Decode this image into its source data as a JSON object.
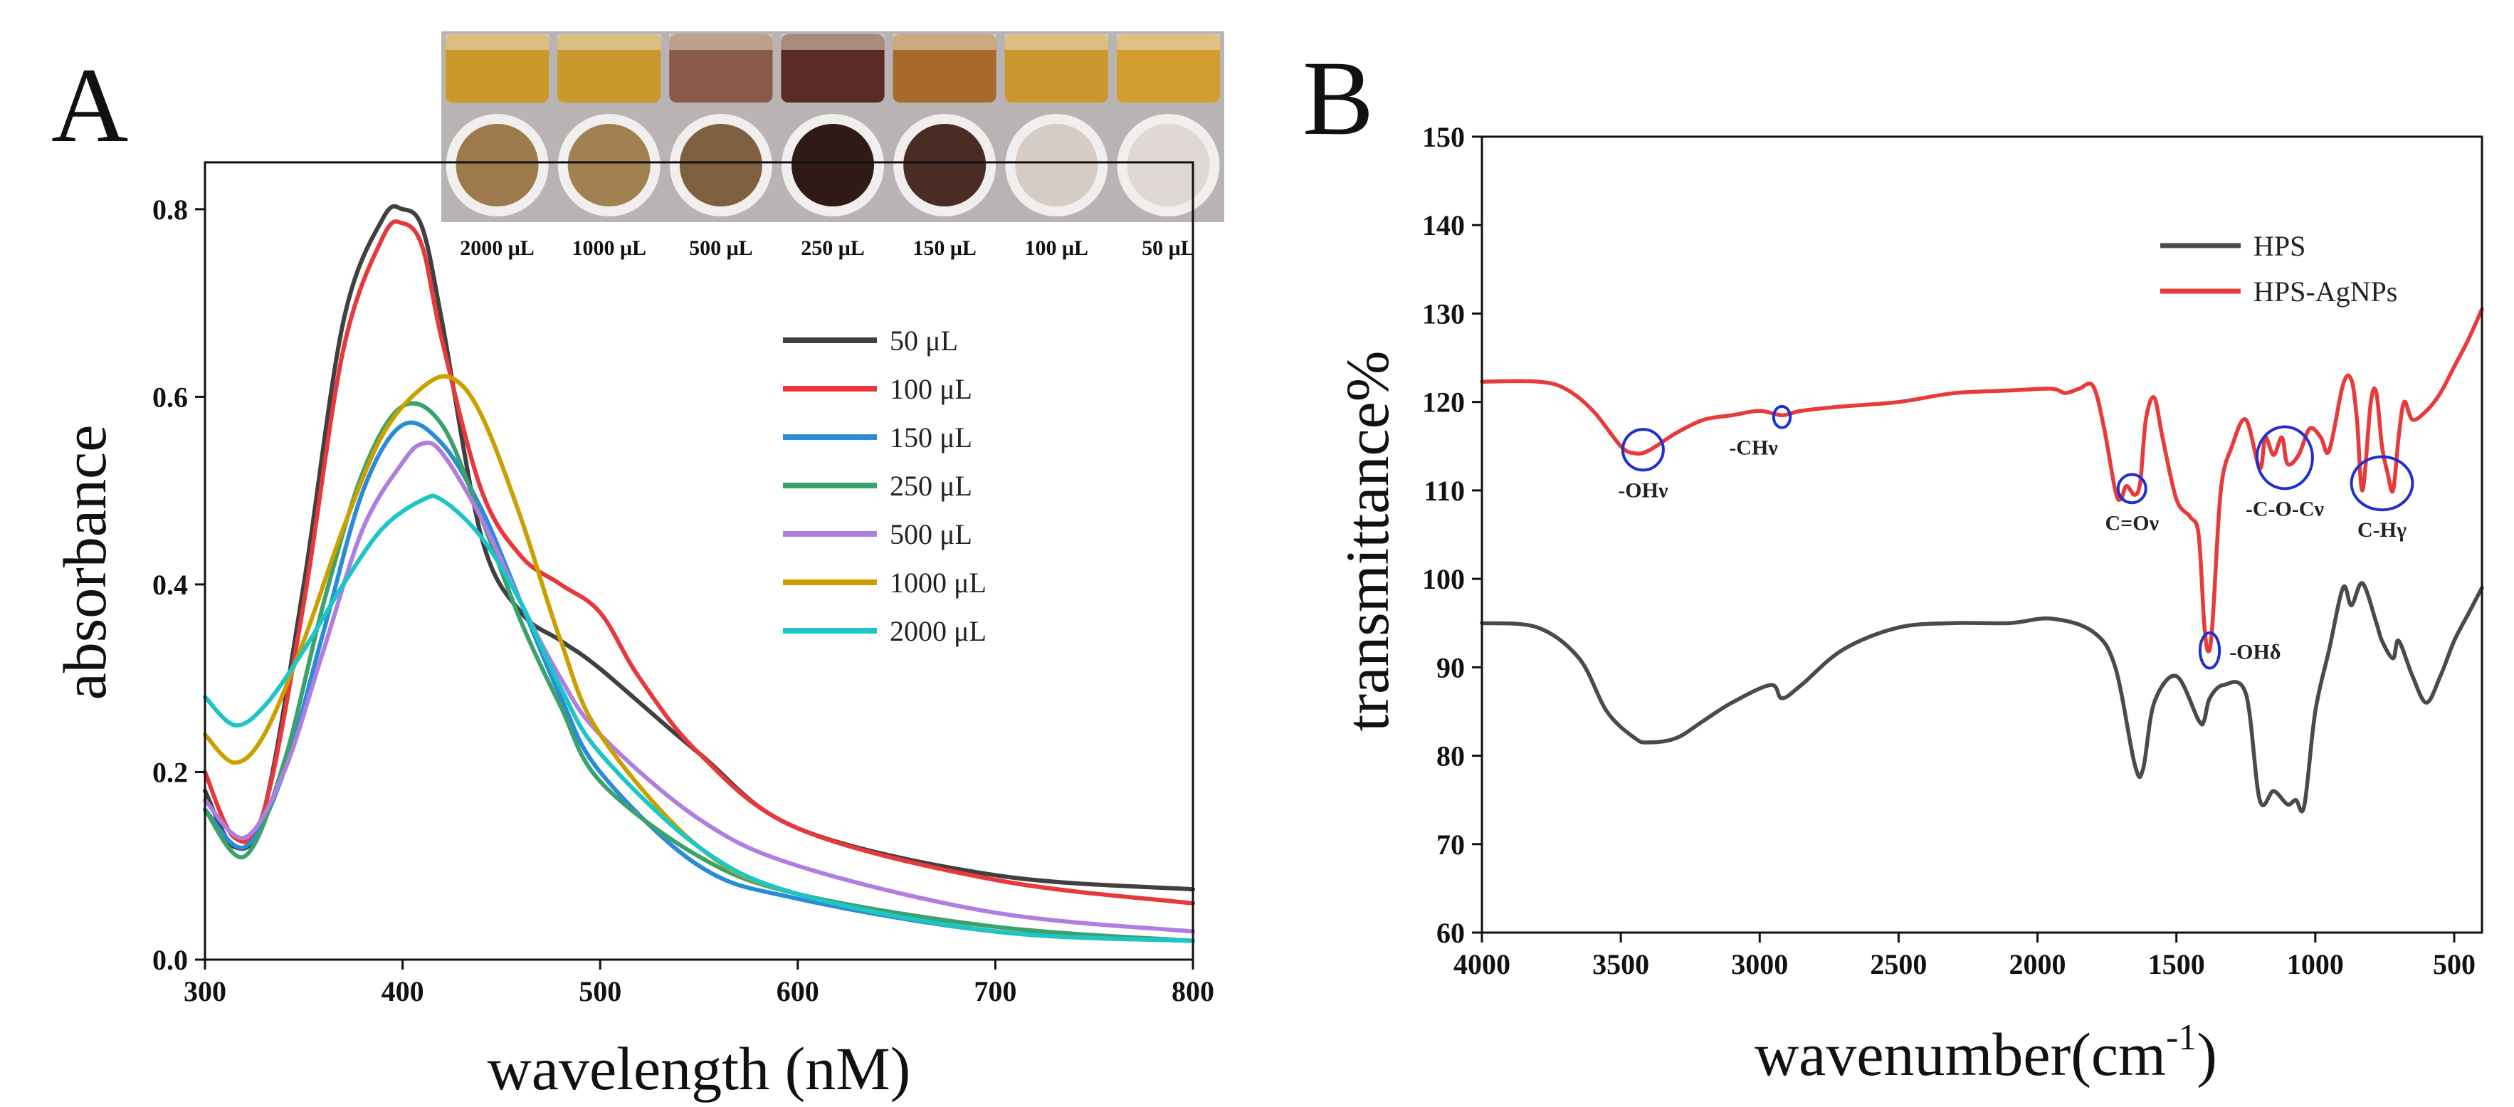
{
  "panels": {
    "a": {
      "letter": "A"
    },
    "b": {
      "letter": "B"
    }
  },
  "vial_photo": {
    "labels": [
      "2000 μL",
      "1000 μL",
      "500 μL",
      "250 μL",
      "150 μL",
      "100 μL",
      "50 μL"
    ],
    "liquid_colors": [
      "#c99a2a",
      "#c8992c",
      "#8a5a48",
      "#5a2a24",
      "#a86a2a",
      "#c9972e",
      "#d39e30"
    ],
    "dot_colors": [
      "#9c7a4c",
      "#a0814f",
      "#7e6040",
      "#2f1a16",
      "#4a2c24",
      "#d6ccc6",
      "#e0d8d4"
    ]
  },
  "colors": {
    "uv_50": "#404040",
    "uv_100": "#e8383b",
    "uv_150": "#2a8cd8",
    "uv_250": "#3aa26c",
    "uv_500": "#b07ee0",
    "uv_1000": "#c9a000",
    "uv_2000": "#1cc6c6",
    "ir_hps": "#4a4a4a",
    "ir_agnps": "#e83a3a",
    "circle": "#1f2fd0"
  },
  "chart_data": [
    {
      "type": "line",
      "title": "",
      "xlabel": "wavelength (nM)",
      "ylabel": "absorbance",
      "xlim": [
        300,
        800
      ],
      "ylim": [
        0,
        0.85
      ],
      "xticks": [
        300,
        400,
        500,
        600,
        700,
        800
      ],
      "yticks": [
        0.0,
        0.2,
        0.4,
        0.6,
        0.8
      ],
      "xtick_labels": [
        "300",
        "400",
        "500",
        "600",
        "700",
        "800"
      ],
      "ytick_labels": [
        "0.0",
        "0.2",
        "0.4",
        "0.6",
        "0.8"
      ],
      "legend_position": "right",
      "series": [
        {
          "name": "50 μL",
          "color_key": "uv_50",
          "x": [
            300,
            315,
            330,
            350,
            370,
            390,
            400,
            410,
            420,
            440,
            460,
            480,
            500,
            550,
            600,
            700,
            800
          ],
          "y": [
            0.18,
            0.12,
            0.16,
            0.4,
            0.68,
            0.79,
            0.8,
            0.78,
            0.68,
            0.45,
            0.37,
            0.34,
            0.31,
            0.22,
            0.14,
            0.09,
            0.075
          ]
        },
        {
          "name": "100 μL",
          "color_key": "uv_100",
          "x": [
            300,
            315,
            330,
            350,
            370,
            390,
            400,
            410,
            420,
            440,
            460,
            480,
            500,
            520,
            550,
            600,
            700,
            800
          ],
          "y": [
            0.2,
            0.13,
            0.16,
            0.38,
            0.65,
            0.77,
            0.785,
            0.76,
            0.66,
            0.5,
            0.43,
            0.4,
            0.37,
            0.3,
            0.22,
            0.14,
            0.085,
            0.06
          ]
        },
        {
          "name": "150 μL",
          "color_key": "uv_150",
          "x": [
            300,
            320,
            340,
            360,
            380,
            400,
            420,
            440,
            460,
            480,
            500,
            550,
            600,
            700,
            800
          ],
          "y": [
            0.16,
            0.12,
            0.2,
            0.35,
            0.5,
            0.57,
            0.55,
            0.48,
            0.38,
            0.28,
            0.2,
            0.1,
            0.065,
            0.03,
            0.02
          ]
        },
        {
          "name": "250 μL",
          "color_key": "uv_250",
          "x": [
            300,
            320,
            340,
            360,
            380,
            400,
            420,
            440,
            460,
            480,
            500,
            550,
            600,
            700,
            800
          ],
          "y": [
            0.16,
            0.11,
            0.21,
            0.38,
            0.52,
            0.59,
            0.57,
            0.47,
            0.36,
            0.27,
            0.19,
            0.11,
            0.07,
            0.035,
            0.02
          ]
        },
        {
          "name": "500 μL",
          "color_key": "uv_500",
          "x": [
            300,
            320,
            340,
            360,
            380,
            400,
            410,
            420,
            440,
            460,
            480,
            500,
            550,
            600,
            700,
            800
          ],
          "y": [
            0.17,
            0.13,
            0.2,
            0.33,
            0.46,
            0.53,
            0.55,
            0.54,
            0.47,
            0.38,
            0.3,
            0.24,
            0.15,
            0.1,
            0.05,
            0.03
          ]
        },
        {
          "name": "1000 μL",
          "color_key": "uv_1000",
          "x": [
            300,
            315,
            330,
            350,
            370,
            390,
            410,
            425,
            440,
            460,
            480,
            500,
            550,
            600,
            700,
            800
          ],
          "y": [
            0.24,
            0.21,
            0.24,
            0.34,
            0.46,
            0.56,
            0.61,
            0.62,
            0.58,
            0.47,
            0.34,
            0.24,
            0.12,
            0.07,
            0.03,
            0.02
          ]
        },
        {
          "name": "2000 μL",
          "color_key": "uv_2000",
          "x": [
            300,
            315,
            330,
            350,
            370,
            390,
            410,
            420,
            440,
            460,
            480,
            500,
            550,
            600,
            700,
            800
          ],
          "y": [
            0.28,
            0.25,
            0.27,
            0.33,
            0.4,
            0.46,
            0.49,
            0.49,
            0.45,
            0.38,
            0.29,
            0.22,
            0.12,
            0.07,
            0.03,
            0.02
          ]
        }
      ]
    },
    {
      "type": "line",
      "title": "",
      "xlabel": "wavenumber(cm",
      "xlabel_superscript": "-1",
      "xlabel_suffix": ")",
      "ylabel": "transmittance%",
      "xlim": [
        4000,
        400
      ],
      "ylim": [
        60,
        150
      ],
      "xticks": [
        4000,
        3500,
        3000,
        2500,
        2000,
        1500,
        1000,
        500
      ],
      "yticks": [
        60,
        70,
        80,
        90,
        100,
        110,
        120,
        130,
        140,
        150
      ],
      "xtick_labels": [
        "4000",
        "3500",
        "3000",
        "2500",
        "2000",
        "1500",
        "1000",
        "500"
      ],
      "ytick_labels": [
        "60",
        "70",
        "80",
        "90",
        "100",
        "110",
        "120",
        "130",
        "140",
        "150"
      ],
      "legend_position": "top-right",
      "series": [
        {
          "name": "HPS",
          "color_key": "ir_hps",
          "x": [
            4000,
            3800,
            3650,
            3550,
            3450,
            3400,
            3300,
            3200,
            3100,
            2960,
            2920,
            2850,
            2700,
            2500,
            2300,
            2100,
            1950,
            1800,
            1720,
            1650,
            1620,
            1580,
            1500,
            1420,
            1400,
            1380,
            1330,
            1250,
            1200,
            1150,
            1100,
            1070,
            1040,
            1000,
            950,
            900,
            870,
            830,
            780,
            760,
            720,
            700,
            650,
            600,
            550,
            500,
            450,
            400
          ],
          "y": [
            95,
            94.5,
            91,
            85,
            82,
            81.5,
            82,
            84,
            86,
            88,
            86.5,
            88,
            92,
            94.5,
            95,
            95,
            95.5,
            94,
            90,
            79,
            78.5,
            86,
            89,
            84,
            84,
            86.5,
            88,
            87,
            75,
            76,
            74.5,
            75,
            74.3,
            85,
            92,
            99,
            97,
            99.5,
            95,
            93,
            91,
            93,
            89,
            86,
            89,
            93,
            96,
            99
          ]
        },
        {
          "name": "HPS-AgNPs",
          "color_key": "ir_agnps",
          "x": [
            4000,
            3800,
            3700,
            3600,
            3500,
            3450,
            3400,
            3300,
            3200,
            3100,
            3000,
            2920,
            2850,
            2700,
            2500,
            2300,
            2100,
            1950,
            1900,
            1850,
            1800,
            1760,
            1720,
            1700,
            1680,
            1650,
            1630,
            1610,
            1580,
            1550,
            1500,
            1450,
            1420,
            1400,
            1385,
            1370,
            1340,
            1300,
            1250,
            1200,
            1180,
            1150,
            1120,
            1100,
            1060,
            1020,
            980,
            950,
            900,
            870,
            850,
            830,
            800,
            780,
            760,
            740,
            720,
            700,
            680,
            650,
            600,
            550,
            500,
            450,
            400
          ],
          "y": [
            122.3,
            122.3,
            121.5,
            119,
            115,
            114.2,
            114.5,
            116.5,
            118,
            118.5,
            119,
            118.5,
            119,
            119.5,
            120,
            121,
            121.3,
            121.5,
            121,
            121.5,
            121.8,
            117,
            110,
            109,
            110.5,
            109.5,
            111,
            118,
            120.5,
            116,
            109,
            107,
            105,
            95,
            91.8,
            95,
            110,
            115,
            118,
            112.5,
            116,
            114,
            116,
            113,
            114,
            117,
            116,
            114.5,
            122,
            122.5,
            118,
            110,
            120,
            121,
            115,
            112,
            110,
            116,
            120,
            118,
            119,
            121,
            124,
            127,
            130.5
          ]
        }
      ],
      "annotations": [
        {
          "text": "-OHν",
          "x": 3420,
          "y": 114.6,
          "rx": 73,
          "ry": 2.3
        },
        {
          "text": "-CHν",
          "x": 2920,
          "y": 118.3,
          "rx": 30,
          "ry": 1.2
        },
        {
          "text": "C=Oν",
          "x": 1660,
          "y": 110.2,
          "rx": 50,
          "ry": 1.6
        },
        {
          "text": "-C-O-Cν",
          "x": 1110,
          "y": 113.7,
          "rx": 100,
          "ry": 3.5
        },
        {
          "text": "C-Hγ",
          "x": 760,
          "y": 110.8,
          "rx": 110,
          "ry": 3.0
        },
        {
          "text": "-OHδ",
          "x": 1380,
          "y": 91.9,
          "rx": 35,
          "ry": 2.0
        }
      ]
    }
  ]
}
